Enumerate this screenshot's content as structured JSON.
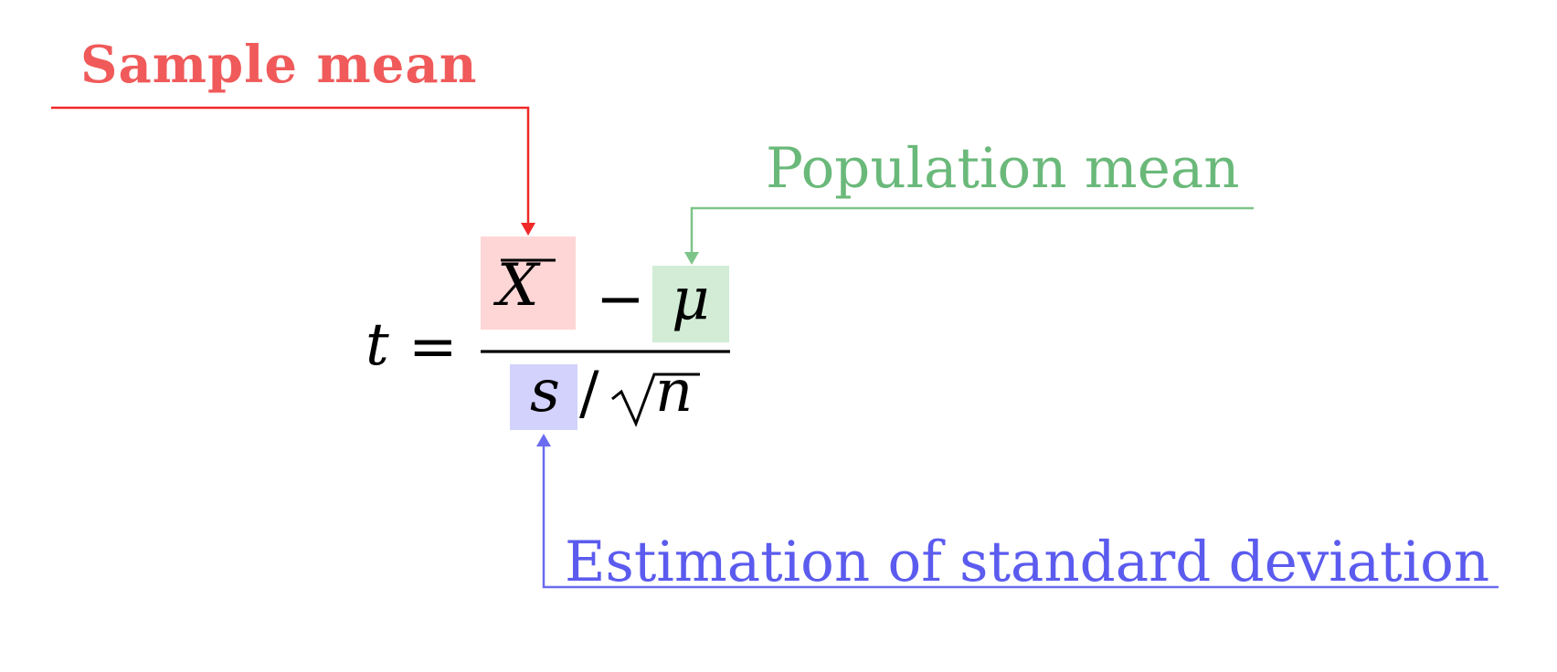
{
  "annotations": {
    "sample_mean": {
      "label": "Sample mean",
      "color": "#f05a5a",
      "arrow_color": "#f02828",
      "highlight": "#ffd6d6"
    },
    "population_mean": {
      "label": "Population mean",
      "color": "#6ab97a",
      "arrow_color": "#7cc488",
      "highlight": "#d2ecd5"
    },
    "std_estimate": {
      "label": "Estimation of standard deviation",
      "color": "#5b5bef",
      "arrow_color": "#6b6bef",
      "highlight": "#d2d2fc"
    }
  },
  "formula": {
    "lhs": "t",
    "equals": "=",
    "numerator": {
      "term1": "X",
      "op": "−",
      "term2": "μ"
    },
    "denominator": {
      "term1": "s",
      "op": "/",
      "radicand": "n"
    }
  }
}
